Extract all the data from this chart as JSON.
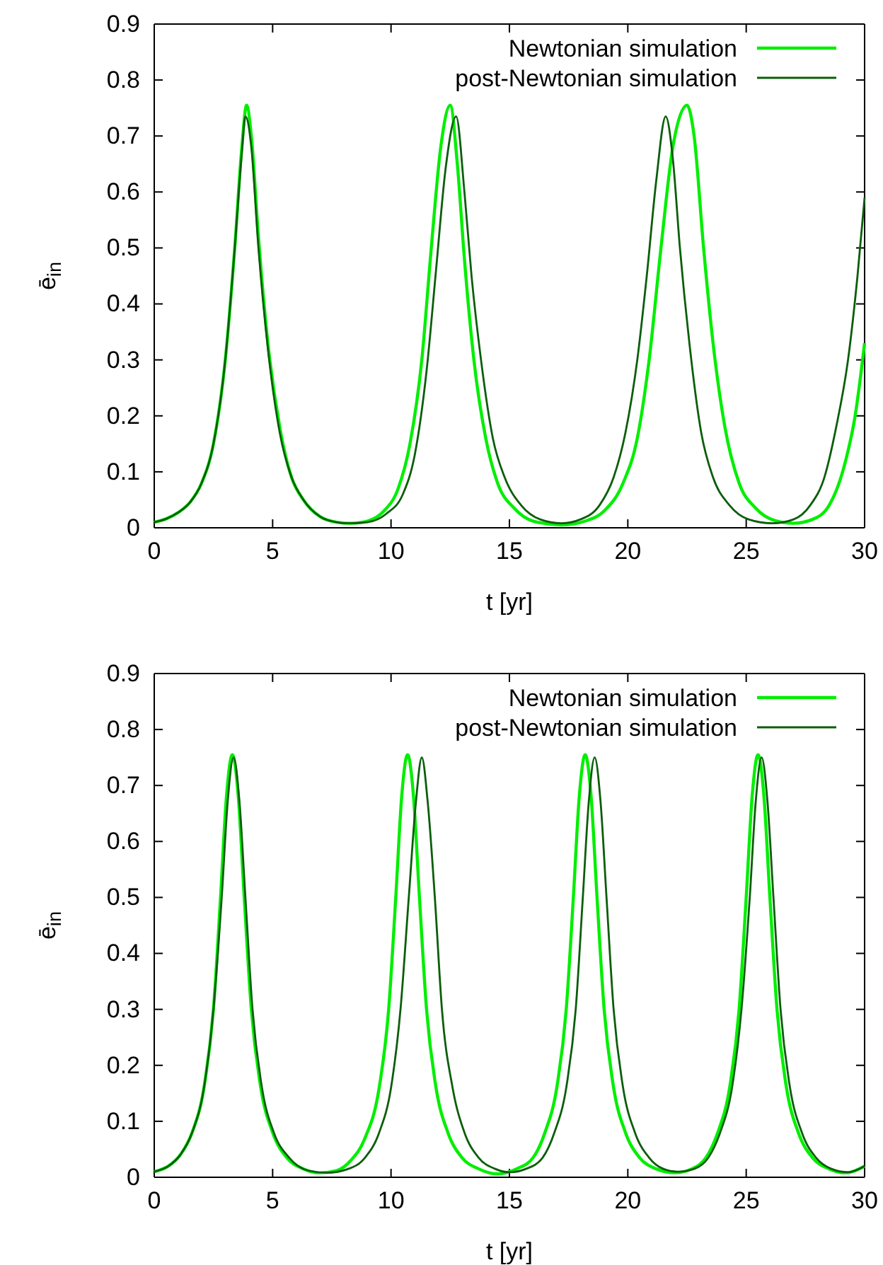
{
  "chart_data": [
    {
      "type": "line",
      "xlabel": "t [yr]",
      "ylabel": "ē$_{in}$",
      "xlim": [
        0,
        30
      ],
      "ylim": [
        0,
        0.9
      ],
      "xticks": [
        0,
        5,
        10,
        15,
        20,
        25,
        30
      ],
      "yticks": [
        0,
        0.1,
        0.2,
        0.3,
        0.4,
        0.5,
        0.6,
        0.7,
        0.8,
        0.9
      ],
      "legend": "top right",
      "grid": false,
      "series": [
        {
          "name": "Newtonian simulation",
          "color": "#00ee00",
          "x": [
            0,
            0.5,
            1,
            1.5,
            2,
            2.5,
            3,
            3.4,
            3.7,
            3.9,
            4.1,
            4.4,
            4.8,
            5.3,
            5.8,
            6.3,
            7,
            7.7,
            8.3,
            9,
            9.7,
            10.3,
            10.8,
            11.3,
            11.7,
            12.1,
            12.5,
            12.8,
            13.1,
            13.5,
            14,
            14.5,
            15.2,
            16,
            17.2,
            18.2,
            19,
            19.8,
            20.4,
            20.9,
            21.4,
            21.9,
            22.5,
            22.8,
            23.2,
            23.6,
            24.1,
            24.7,
            25.4,
            26.2,
            27,
            27.8,
            28.5,
            29.2,
            29.6,
            30
          ],
          "values": [
            0.01,
            0.016,
            0.027,
            0.045,
            0.08,
            0.15,
            0.3,
            0.5,
            0.68,
            0.755,
            0.7,
            0.52,
            0.33,
            0.18,
            0.09,
            0.05,
            0.02,
            0.01,
            0.008,
            0.012,
            0.03,
            0.07,
            0.15,
            0.3,
            0.5,
            0.68,
            0.755,
            0.65,
            0.48,
            0.3,
            0.16,
            0.08,
            0.035,
            0.012,
            0.005,
            0.012,
            0.03,
            0.08,
            0.16,
            0.3,
            0.5,
            0.68,
            0.755,
            0.7,
            0.5,
            0.33,
            0.18,
            0.08,
            0.035,
            0.013,
            0.008,
            0.015,
            0.04,
            0.12,
            0.2,
            0.33
          ]
        },
        {
          "name": "post-Newtonian simulation",
          "color": "#0b5e0b",
          "x": [
            0,
            0.5,
            1,
            1.5,
            2,
            2.5,
            3,
            3.4,
            3.7,
            3.85,
            4.1,
            4.4,
            4.8,
            5.3,
            5.8,
            6.3,
            7,
            7.7,
            8.2,
            9,
            9.8,
            10.5,
            11,
            11.5,
            11.9,
            12.3,
            12.75,
            13.1,
            13.4,
            13.8,
            14.3,
            14.8,
            15.5,
            16.3,
            17.2,
            18,
            18.8,
            19.4,
            19.9,
            20.4,
            20.8,
            21.2,
            21.6,
            21.9,
            22.2,
            22.6,
            23.1,
            23.6,
            24.3,
            25.1,
            26.1,
            27,
            27.7,
            28.3,
            28.8,
            29.3,
            29.7,
            30
          ],
          "values": [
            0.01,
            0.016,
            0.027,
            0.045,
            0.08,
            0.15,
            0.3,
            0.5,
            0.67,
            0.735,
            0.68,
            0.5,
            0.32,
            0.17,
            0.09,
            0.05,
            0.02,
            0.01,
            0.008,
            0.01,
            0.025,
            0.06,
            0.13,
            0.28,
            0.46,
            0.64,
            0.735,
            0.6,
            0.45,
            0.3,
            0.16,
            0.09,
            0.04,
            0.015,
            0.008,
            0.015,
            0.04,
            0.09,
            0.17,
            0.3,
            0.45,
            0.62,
            0.735,
            0.66,
            0.5,
            0.33,
            0.17,
            0.09,
            0.04,
            0.015,
            0.008,
            0.015,
            0.04,
            0.09,
            0.18,
            0.3,
            0.45,
            0.59
          ]
        }
      ]
    },
    {
      "type": "line",
      "xlabel": "t [yr]",
      "ylabel": "ē$_{in}$",
      "xlim": [
        0,
        30
      ],
      "ylim": [
        0,
        0.9
      ],
      "xticks": [
        0,
        5,
        10,
        15,
        20,
        25,
        30
      ],
      "yticks": [
        0,
        0.1,
        0.2,
        0.3,
        0.4,
        0.5,
        0.6,
        0.7,
        0.8,
        0.9
      ],
      "legend": "top right",
      "grid": false,
      "series": [
        {
          "name": "Newtonian simulation",
          "color": "#00ee00",
          "x": [
            0,
            0.6,
            1.1,
            1.6,
            2.1,
            2.5,
            2.8,
            3.05,
            3.3,
            3.55,
            3.8,
            4.1,
            4.5,
            5,
            5.6,
            6.3,
            7,
            7.7,
            8.3,
            8.9,
            9.5,
            9.9,
            10.2,
            10.45,
            10.7,
            10.95,
            11.2,
            11.5,
            11.9,
            12.4,
            13,
            13.7,
            14.5,
            15.3,
            16,
            16.5,
            17,
            17.4,
            17.7,
            17.95,
            18.2,
            18.45,
            18.7,
            19,
            19.4,
            19.9,
            20.5,
            21.2,
            22,
            22.7,
            23.3,
            23.8,
            24.3,
            24.7,
            25,
            25.25,
            25.5,
            25.75,
            26,
            26.3,
            26.7,
            27.2,
            27.8,
            28.5,
            29.2,
            30
          ],
          "values": [
            0.01,
            0.02,
            0.04,
            0.08,
            0.16,
            0.3,
            0.5,
            0.68,
            0.755,
            0.68,
            0.5,
            0.3,
            0.16,
            0.08,
            0.035,
            0.015,
            0.008,
            0.012,
            0.03,
            0.07,
            0.16,
            0.3,
            0.5,
            0.68,
            0.755,
            0.68,
            0.5,
            0.3,
            0.16,
            0.08,
            0.035,
            0.015,
            0.006,
            0.015,
            0.035,
            0.08,
            0.16,
            0.3,
            0.5,
            0.68,
            0.755,
            0.68,
            0.5,
            0.3,
            0.16,
            0.08,
            0.035,
            0.015,
            0.008,
            0.015,
            0.035,
            0.08,
            0.16,
            0.3,
            0.5,
            0.68,
            0.755,
            0.68,
            0.5,
            0.3,
            0.16,
            0.08,
            0.035,
            0.015,
            0.008,
            0.02
          ]
        },
        {
          "name": "post-Newtonian simulation",
          "color": "#0b5e0b",
          "x": [
            0,
            0.6,
            1.1,
            1.6,
            2.1,
            2.5,
            2.85,
            3.1,
            3.35,
            3.6,
            3.85,
            4.15,
            4.55,
            5.05,
            5.7,
            6.5,
            7.3,
            8.2,
            8.9,
            9.5,
            10,
            10.4,
            10.75,
            11.05,
            11.3,
            11.55,
            11.85,
            12.15,
            12.6,
            13.1,
            13.7,
            14.4,
            15,
            15.7,
            16.4,
            16.9,
            17.4,
            17.8,
            18.1,
            18.35,
            18.6,
            18.85,
            19.1,
            19.4,
            19.8,
            20.3,
            20.9,
            21.5,
            22.1,
            22.8,
            23.4,
            23.9,
            24.4,
            24.8,
            25.15,
            25.4,
            25.65,
            25.9,
            26.15,
            26.45,
            26.85,
            27.35,
            27.95,
            28.6,
            29.3,
            30
          ],
          "values": [
            0.01,
            0.02,
            0.04,
            0.08,
            0.16,
            0.3,
            0.5,
            0.67,
            0.75,
            0.67,
            0.5,
            0.3,
            0.16,
            0.08,
            0.035,
            0.012,
            0.008,
            0.015,
            0.035,
            0.08,
            0.16,
            0.3,
            0.5,
            0.67,
            0.75,
            0.67,
            0.5,
            0.3,
            0.16,
            0.08,
            0.035,
            0.015,
            0.009,
            0.015,
            0.035,
            0.08,
            0.16,
            0.3,
            0.5,
            0.67,
            0.75,
            0.67,
            0.5,
            0.3,
            0.16,
            0.08,
            0.035,
            0.015,
            0.01,
            0.015,
            0.035,
            0.08,
            0.16,
            0.3,
            0.5,
            0.67,
            0.75,
            0.67,
            0.5,
            0.3,
            0.16,
            0.08,
            0.035,
            0.015,
            0.009,
            0.02
          ]
        }
      ]
    }
  ]
}
